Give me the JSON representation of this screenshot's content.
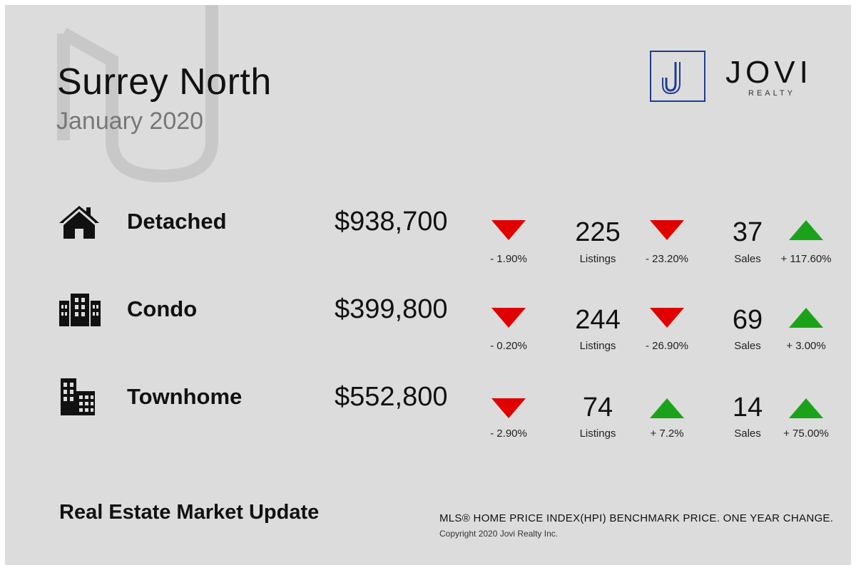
{
  "header": {
    "title": "Surrey North",
    "subtitle": "January 2020"
  },
  "logo": {
    "mark": "J",
    "name": "JOVI",
    "sub": "REALTY"
  },
  "rows": [
    {
      "icon": "house-icon",
      "label": "Detached",
      "price": "$938,700",
      "price_change": "- 1.90%",
      "price_trend": "down",
      "listings": "225",
      "listings_label": "Listings",
      "listings_change": "- 23.20%",
      "listings_trend": "down",
      "sales": "37",
      "sales_label": "Sales",
      "sales_change": "+ 117.60%",
      "sales_trend": "up"
    },
    {
      "icon": "condo-building-icon",
      "label": "Condo",
      "price": "$399,800",
      "price_change": "- 0.20%",
      "price_trend": "down",
      "listings": "244",
      "listings_label": "Listings",
      "listings_change": "- 26.90%",
      "listings_trend": "down",
      "sales": "69",
      "sales_label": "Sales",
      "sales_change": "+ 3.00%",
      "sales_trend": "up"
    },
    {
      "icon": "townhome-building-icon",
      "label": "Townhome",
      "price": "$552,800",
      "price_change": "- 2.90%",
      "price_trend": "down",
      "listings": "74",
      "listings_label": "Listings",
      "listings_change": "+ 7.2%",
      "listings_trend": "up",
      "sales": "14",
      "sales_label": "Sales",
      "sales_change": "+ 75.00%",
      "sales_trend": "up"
    }
  ],
  "footer": {
    "title": "Real Estate Market Update",
    "note": "MLS® HOME PRICE INDEX(HPI) BENCHMARK PRICE. ONE YEAR CHANGE.",
    "copyright": "Copyright 2020 Jovi Realty Inc."
  },
  "colors": {
    "down": "#e00000",
    "up": "#1aa31a",
    "logo_blue": "#1f3c8f"
  }
}
